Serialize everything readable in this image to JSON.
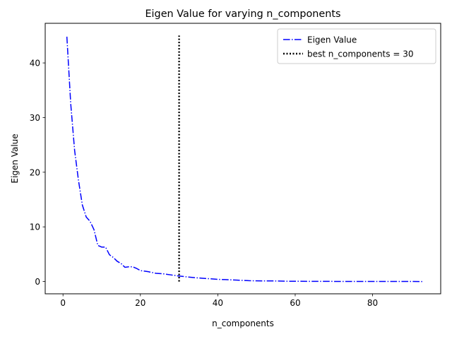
{
  "chart_data": {
    "type": "line",
    "title": "Eigen Value for varying n_components",
    "xlabel": "n_components",
    "ylabel": "Eigen Value",
    "xlim": [
      -4.6,
      97.6
    ],
    "ylim": [
      -2.25,
      47.25
    ],
    "xticks": [
      0,
      20,
      40,
      60,
      80
    ],
    "yticks": [
      0,
      10,
      20,
      30,
      40
    ],
    "grid": false,
    "legend_position": "top-right",
    "series": [
      {
        "name": "Eigen Value",
        "color": "#0000ff",
        "linestyle": "dashdot",
        "x": [
          1,
          2,
          3,
          4,
          5,
          6,
          7,
          8,
          9,
          10,
          11,
          12,
          13,
          14,
          15,
          16,
          17,
          18,
          19,
          20,
          22,
          24,
          26,
          28,
          30,
          32,
          34,
          36,
          38,
          40,
          42,
          45,
          48,
          50,
          55,
          58,
          60,
          65,
          70,
          75,
          80,
          85,
          90,
          93
        ],
        "y": [
          44.8,
          32.5,
          24.0,
          18.5,
          14.0,
          11.8,
          11.0,
          9.5,
          6.6,
          6.3,
          6.3,
          4.9,
          4.4,
          3.7,
          3.3,
          2.6,
          2.7,
          2.7,
          2.4,
          2.0,
          1.8,
          1.5,
          1.4,
          1.2,
          1.0,
          0.85,
          0.7,
          0.6,
          0.5,
          0.4,
          0.35,
          0.25,
          0.15,
          0.12,
          0.1,
          0.05,
          0.04,
          0.03,
          0.02,
          0.02,
          0.01,
          0.01,
          0.01,
          0.0
        ]
      }
    ],
    "reference_lines": [
      {
        "name": "best n_components = 30",
        "color": "#000000",
        "linestyle": "dotted",
        "x": 30,
        "y_range": [
          0,
          45
        ]
      }
    ]
  }
}
